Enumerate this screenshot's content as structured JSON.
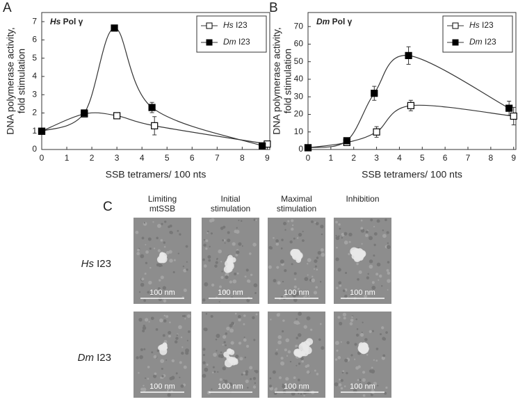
{
  "chart_data": [
    {
      "type": "line",
      "panel": "A",
      "title": "Hs Pol γ",
      "x_label": "SSB tetramers/ 100 nts",
      "y_label": [
        "DNA polymerase activity,",
        "fold stimulation"
      ],
      "xlim": [
        0,
        9.1
      ],
      "xticks": [
        0,
        1,
        2,
        3,
        4,
        5,
        6,
        7,
        8,
        9
      ],
      "ylim": [
        0,
        7.5
      ],
      "yticks": [
        0,
        1,
        2,
        3,
        4,
        5,
        6,
        7
      ],
      "legend": "upper right",
      "series": [
        {
          "name": "Hs I23",
          "color": "#ffffff",
          "x": [
            0,
            1.7,
            3,
            4.5,
            9
          ],
          "values": [
            1,
            1.95,
            1.85,
            1.3,
            0.3
          ],
          "errors": [
            0.05,
            0.1,
            0.1,
            0.5,
            0.05
          ]
        },
        {
          "name": "Dm I23",
          "color": "#000000",
          "x": [
            0,
            1.7,
            2.9,
            4.4,
            8.8
          ],
          "values": [
            1,
            2.0,
            6.65,
            2.3,
            0.2
          ],
          "errors": [
            0.05,
            0.1,
            0.12,
            0.28,
            0.05
          ]
        }
      ]
    },
    {
      "type": "line",
      "panel": "B",
      "title": "Dm Pol γ",
      "x_label": "SSB tetramers/ 100 nts",
      "y_label": [
        "DNA polymerase activity,",
        "fold stimulation"
      ],
      "xlim": [
        0,
        9.1
      ],
      "xticks": [
        0,
        1,
        2,
        3,
        4,
        5,
        6,
        7,
        8,
        9
      ],
      "ylim": [
        0,
        78
      ],
      "yticks": [
        0,
        10,
        20,
        30,
        40,
        50,
        60,
        70
      ],
      "legend": "upper right",
      "series": [
        {
          "name": "Hs I23",
          "color": "#ffffff",
          "x": [
            0,
            1.7,
            3,
            4.5,
            9
          ],
          "values": [
            1,
            4,
            10,
            25,
            19
          ],
          "errors": [
            0.5,
            1,
            3,
            3,
            5
          ]
        },
        {
          "name": "Dm I23",
          "color": "#000000",
          "x": [
            0,
            1.7,
            2.9,
            4.4,
            8.8
          ],
          "values": [
            1,
            5,
            32,
            53.5,
            23.5
          ],
          "errors": [
            0.5,
            1,
            4,
            5,
            4
          ]
        }
      ]
    }
  ],
  "panel_c": {
    "label": "C",
    "columns": [
      [
        "Limiting",
        "mtSSB"
      ],
      [
        "Initial",
        "stimulation"
      ],
      [
        "Maximal",
        "stimulation"
      ],
      [
        "Inhibition"
      ]
    ],
    "rows": [
      "Hs I23",
      "Dm I23"
    ],
    "scale_bar": "100 nm"
  }
}
